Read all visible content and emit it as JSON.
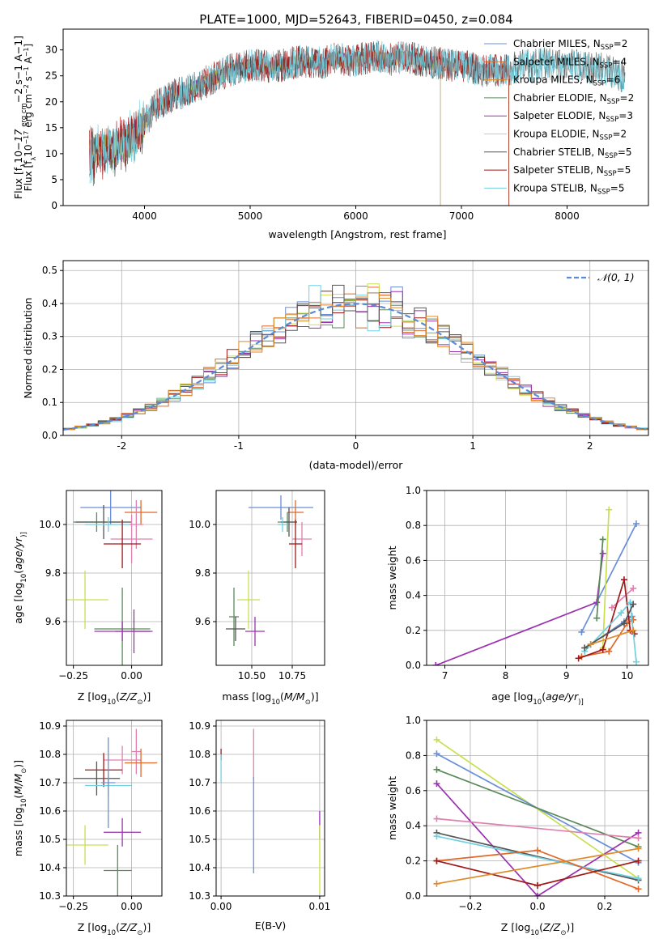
{
  "figure_title": "PLATE=1000, MJD=52643, FIBERID=0450, z=0.084",
  "colors": {
    "Chabrier MILES": "#6a8fd8",
    "Salpeter MILES": "#e0682a",
    "Kroupa MILES": "#e08a2a",
    "Chabrier ELODIE": "#5a8a5a",
    "Salpeter ELODIE": "#9a30b0",
    "Kroupa ELODIE": "#c8e050",
    "Chabrier STELIB": "#555555",
    "Salpeter STELIB": "#a01818",
    "Kroupa STELIB": "#70d0e0",
    "pink": "#e080b0",
    "normal_curve": "#5b8ad6"
  },
  "chart_data": [
    {
      "id": "spectrum",
      "type": "line",
      "title": "PLATE=1000, MJD=52643, FIBERID=0450, z=0.084",
      "xlabel": "wavelength [Angstrom, rest frame]",
      "ylabel": "Flux [f",
      "ylabel_parts": [
        "Flux [f",
        "λ",
        "10",
        "−17",
        " erg cm",
        "−2",
        " s",
        "−1",
        " A",
        "−1",
        "]"
      ],
      "xlim": [
        3230,
        8770
      ],
      "ylim": [
        0,
        34
      ],
      "xticks": [
        4000,
        5000,
        6000,
        7000,
        8000
      ],
      "yticks": [
        0,
        5,
        10,
        15,
        20,
        25,
        30
      ],
      "legend_placement": "right",
      "grid": false,
      "envelope": {
        "x": [
          3480,
          3600,
          3700,
          3800,
          3900,
          4000,
          4100,
          4200,
          4300,
          4400,
          4500,
          4600,
          4700,
          4800,
          4900,
          5000,
          5100,
          5200,
          5300,
          5400,
          5500,
          5600,
          5700,
          5800,
          5900,
          6000,
          6100,
          6200,
          6300,
          6400,
          6500,
          6600,
          6700,
          6800,
          6900,
          7000,
          7100,
          7200,
          7300,
          7400,
          7500,
          7600,
          7700,
          7800,
          7900,
          8000,
          8100,
          8200,
          8300,
          8400,
          8500
        ],
        "y": [
          9.5,
          10.5,
          11,
          12,
          13,
          16,
          19,
          20.5,
          21.5,
          22,
          23,
          24,
          25,
          26,
          26.5,
          27,
          27,
          26.5,
          27,
          27.5,
          28,
          27.5,
          27.5,
          28.5,
          28,
          28,
          28.5,
          29,
          28,
          28.5,
          28.5,
          28,
          27.5,
          27.5,
          27,
          27,
          26.5,
          26,
          26,
          26,
          26.5,
          27,
          27,
          27.5,
          27,
          27,
          27,
          26.5,
          26.5,
          26,
          25
        ]
      },
      "series": [
        {
          "name": "Chabrier MILES, N",
          "sub": "SSP",
          "suffix": "=2",
          "color": "#6a8fd8",
          "x_range": [
            3480,
            7450
          ]
        },
        {
          "name": "Salpeter MILES, N",
          "sub": "SSP",
          "suffix": "=4",
          "color": "#e0682a",
          "x_range": [
            3480,
            7450
          ]
        },
        {
          "name": "Kroupa MILES, N",
          "sub": "SSP",
          "suffix": "=6",
          "color": "#e08a2a",
          "x_range": [
            3480,
            7450
          ]
        },
        {
          "name": "Chabrier ELODIE, N",
          "sub": "SSP",
          "suffix": "=2",
          "color": "#5a8a5a",
          "x_range": [
            3480,
            6800
          ]
        },
        {
          "name": "Salpeter ELODIE, N",
          "sub": "SSP",
          "suffix": "=3",
          "color": "#9a30b0",
          "x_range": [
            3480,
            6800
          ]
        },
        {
          "name": "Kroupa ELODIE, N",
          "sub": "SSP",
          "suffix": "=2",
          "color": "#c8e050",
          "x_range": [
            3480,
            6800
          ]
        },
        {
          "name": "Chabrier STELIB, N",
          "sub": "SSP",
          "suffix": "=5",
          "color": "#555555",
          "x_range": [
            3480,
            8550
          ]
        },
        {
          "name": "Salpeter STELIB, N",
          "sub": "SSP",
          "suffix": "=5",
          "color": "#a01818",
          "x_range": [
            3480,
            7450
          ]
        },
        {
          "name": "Kroupa STELIB, N",
          "sub": "SSP",
          "suffix": "=5",
          "color": "#70d0e0",
          "x_range": [
            3480,
            8550
          ]
        }
      ]
    },
    {
      "id": "residuals",
      "type": "line",
      "xlabel": "(data-model)/error",
      "ylabel": "Normed distribution",
      "xlim": [
        -2.5,
        2.5
      ],
      "ylim": [
        0,
        0.53
      ],
      "xticks": [
        -2,
        -1,
        0,
        1,
        2
      ],
      "ytick_labels": [
        "0.0",
        "0.1",
        "0.2",
        "0.3",
        "0.4",
        "0.5"
      ],
      "grid": true,
      "legend_placement": "top-right",
      "legend_entry": "𝒩(0, 1)",
      "bin_width": 0.1,
      "histogram_colors": [
        "#6a8fd8",
        "#e0682a",
        "#5a8a5a",
        "#9a30b0",
        "#c8e050",
        "#a01818",
        "#70d0e0",
        "#555555",
        "#e08a2a"
      ]
    },
    {
      "id": "age-vs-metallicity",
      "type": "scatter",
      "xlabel": "Z [log",
      "xlabel_parts": [
        "Z [log",
        "10",
        "(",
        "Z/Z",
        "⊙",
        ")]"
      ],
      "ylabel_parts": [
        "age  [log",
        "10",
        "(",
        "age/yr",
        ")]"
      ],
      "xlim": [
        -0.28,
        0.13
      ],
      "ylim": [
        9.42,
        10.14
      ],
      "xticks": [
        -0.25,
        0.0
      ],
      "xtick_labels": [
        "−0.25",
        "0.00"
      ],
      "yticks": [
        9.6,
        9.8,
        10.0
      ],
      "ytick_labels": [
        "9.6",
        "9.8",
        "10.0"
      ],
      "grid": true,
      "points": [
        {
          "x": -0.09,
          "y": 10.07,
          "xerr": 0.13,
          "yerr": 0.07,
          "color": "#6a8fd8"
        },
        {
          "x": 0.04,
          "y": 10.05,
          "xerr": 0.07,
          "yerr": 0.05,
          "color": "#e0682a"
        },
        {
          "x": -0.15,
          "y": 10.01,
          "xerr": 0.1,
          "yerr": 0.04,
          "color": "#5a8a5a"
        },
        {
          "x": -0.12,
          "y": 10.01,
          "xerr": 0.12,
          "yerr": 0.07,
          "color": "#555555"
        },
        {
          "x": -0.1,
          "y": 10.0,
          "xerr": 0.1,
          "yerr": 0.03,
          "color": "#70d0e0"
        },
        {
          "x": 0.02,
          "y": 10.0,
          "xerr": 0.03,
          "yerr": 0.1,
          "color": "#e080b0"
        },
        {
          "x": 0.0,
          "y": 9.94,
          "xerr": 0.09,
          "yerr": 0.1,
          "color": "#e080b0"
        },
        {
          "x": -0.04,
          "y": 9.92,
          "xerr": 0.08,
          "yerr": 0.1,
          "color": "#a01818"
        },
        {
          "x": -0.2,
          "y": 9.69,
          "xerr": 0.1,
          "yerr": 0.12,
          "color": "#c8e050"
        },
        {
          "x": -0.04,
          "y": 9.57,
          "xerr": 0.12,
          "yerr": 0.17,
          "color": "#5a8a5a"
        },
        {
          "x": -0.04,
          "y": 9.56,
          "xerr": 0.12,
          "yerr": 0.04,
          "color": "#9a30b0"
        },
        {
          "x": 0.01,
          "y": 9.56,
          "xerr": 0.08,
          "yerr": 0.09,
          "color": "#9a30b0"
        }
      ]
    },
    {
      "id": "age-vs-mass",
      "type": "scatter",
      "xlabel_parts": [
        "mass [log",
        "10",
        "(",
        "M/M",
        "⊙",
        ")]"
      ],
      "xlim": [
        10.28,
        10.95
      ],
      "ylim": [
        9.42,
        10.14
      ],
      "xticks": [
        10.5,
        10.75
      ],
      "xtick_labels": [
        "10.50",
        "10.75"
      ],
      "yticks": [
        9.6,
        9.8,
        10.0
      ],
      "ytick_labels": [
        "9.6",
        "9.8",
        "10.0"
      ],
      "grid": true,
      "points": [
        {
          "x": 10.68,
          "y": 10.07,
          "xerr": 0.2,
          "yerr": 0.05,
          "color": "#6a8fd8"
        },
        {
          "x": 10.77,
          "y": 10.05,
          "xerr": 0.05,
          "yerr": 0.05,
          "color": "#e0682a"
        },
        {
          "x": 10.72,
          "y": 10.01,
          "xerr": 0.06,
          "yerr": 0.04,
          "color": "#5a8a5a"
        },
        {
          "x": 10.73,
          "y": 10.01,
          "xerr": 0.05,
          "yerr": 0.06,
          "color": "#555555"
        },
        {
          "x": 10.69,
          "y": 10.0,
          "xerr": 0.03,
          "yerr": 0.03,
          "color": "#70d0e0"
        },
        {
          "x": 10.81,
          "y": 9.94,
          "xerr": 0.06,
          "yerr": 0.07,
          "color": "#e080b0"
        },
        {
          "x": 10.77,
          "y": 9.92,
          "xerr": 0.04,
          "yerr": 0.1,
          "color": "#a01818"
        },
        {
          "x": 10.48,
          "y": 9.69,
          "xerr": 0.07,
          "yerr": 0.12,
          "color": "#c8e050"
        },
        {
          "x": 10.39,
          "y": 9.62,
          "xerr": 0.03,
          "yerr": 0.12,
          "color": "#5a8a5a"
        },
        {
          "x": 10.4,
          "y": 9.57,
          "xerr": 0.06,
          "yerr": 0.05,
          "color": "#555555"
        },
        {
          "x": 10.52,
          "y": 9.56,
          "xerr": 0.06,
          "yerr": 0.06,
          "color": "#9a30b0"
        }
      ]
    },
    {
      "id": "massweight-vs-age",
      "type": "line",
      "xlabel_parts": [
        "age  [log",
        "10",
        "(",
        "age/yr",
        ")]"
      ],
      "ylabel": "mass weight",
      "xlim": [
        6.7,
        10.35
      ],
      "ylim": [
        0,
        1
      ],
      "xticks": [
        7,
        8,
        9,
        10
      ],
      "ytick_labels": [
        "0.0",
        "0.2",
        "0.4",
        "0.6",
        "0.8",
        "1.0"
      ],
      "grid": true,
      "series": [
        {
          "color": "#6a8fd8",
          "x": [
            9.25,
            10.15
          ],
          "y": [
            0.19,
            0.81
          ]
        },
        {
          "color": "#6a8fd8",
          "x": [
            9.4,
            9.95,
            10.08
          ],
          "y": [
            0.12,
            0.25,
            0.28
          ]
        },
        {
          "color": "#9a30b0",
          "x": [
            6.85,
            9.5,
            9.6
          ],
          "y": [
            0.0,
            0.36,
            0.64
          ]
        },
        {
          "color": "#5a8a5a",
          "x": [
            9.5,
            9.6
          ],
          "y": [
            0.27,
            0.72
          ]
        },
        {
          "color": "#c8e050",
          "x": [
            9.6,
            9.7
          ],
          "y": [
            0.1,
            0.89
          ]
        },
        {
          "color": "#e080b0",
          "x": [
            9.75,
            10.1
          ],
          "y": [
            0.33,
            0.44
          ]
        },
        {
          "color": "#e0682a",
          "x": [
            9.25,
            9.7,
            10.0,
            10.1
          ],
          "y": [
            0.05,
            0.08,
            0.24,
            0.26
          ]
        },
        {
          "color": "#a01818",
          "x": [
            9.2,
            9.6,
            9.95,
            10.05,
            10.12
          ],
          "y": [
            0.04,
            0.09,
            0.49,
            0.2,
            0.18
          ]
        },
        {
          "color": "#70d0e0",
          "x": [
            9.3,
            9.9,
            10.05,
            10.15
          ],
          "y": [
            0.08,
            0.3,
            0.36,
            0.02
          ]
        },
        {
          "color": "#555555",
          "x": [
            9.3,
            9.95,
            10.1
          ],
          "y": [
            0.1,
            0.24,
            0.35
          ]
        },
        {
          "color": "#e08a2a",
          "x": [
            9.4,
            10.1
          ],
          "y": [
            0.12,
            0.2
          ]
        }
      ]
    },
    {
      "id": "mass-vs-metallicity",
      "type": "scatter",
      "xlabel_parts": [
        "Z [log",
        "10",
        "(",
        "Z/Z",
        "⊙",
        ")]"
      ],
      "ylabel_parts": [
        "mass [log",
        "10",
        "(",
        "M/M",
        "⊙",
        ")]"
      ],
      "xlim": [
        -0.28,
        0.13
      ],
      "ylim": [
        10.3,
        10.92
      ],
      "xticks": [
        -0.25,
        0.0
      ],
      "xtick_labels": [
        "−0.25",
        "0.00"
      ],
      "yticks": [
        10.3,
        10.4,
        10.5,
        10.6,
        10.7,
        10.8,
        10.9
      ],
      "ytick_labels": [
        "10.3",
        "10.4",
        "10.5",
        "10.6",
        "10.7",
        "10.8",
        "10.9"
      ],
      "grid": true,
      "points": [
        {
          "x": 0.02,
          "y": 10.81,
          "xerr": 0.02,
          "yerr": 0.08,
          "color": "#e080b0"
        },
        {
          "x": -0.04,
          "y": 10.78,
          "xerr": 0.08,
          "yerr": 0.05,
          "color": "#e080b0"
        },
        {
          "x": 0.04,
          "y": 10.77,
          "xerr": 0.07,
          "yerr": 0.05,
          "color": "#e0682a"
        },
        {
          "x": -0.12,
          "y": 10.745,
          "xerr": 0.08,
          "yerr": 0.06,
          "color": "#a01818"
        },
        {
          "x": -0.15,
          "y": 10.715,
          "xerr": 0.1,
          "yerr": 0.06,
          "color": "#555555"
        },
        {
          "x": -0.1,
          "y": 10.69,
          "xerr": 0.1,
          "yerr": 0.04,
          "color": "#70d0e0"
        },
        {
          "x": -0.1,
          "y": 10.7,
          "xerr": 0.03,
          "yerr": 0.16,
          "color": "#6a8fd8"
        },
        {
          "x": -0.04,
          "y": 10.525,
          "xerr": 0.08,
          "yerr": 0.05,
          "color": "#9a30b0"
        },
        {
          "x": -0.2,
          "y": 10.48,
          "xerr": 0.1,
          "yerr": 0.07,
          "color": "#c8e050"
        },
        {
          "x": -0.06,
          "y": 10.39,
          "xerr": 0.06,
          "yerr": 0.09,
          "color": "#5a8a5a"
        }
      ]
    },
    {
      "id": "mass-vs-ebv",
      "type": "scatter",
      "xlabel": "E(B-V)",
      "xlim": [
        -0.0005,
        0.0105
      ],
      "ylim": [
        10.3,
        10.92
      ],
      "xticks": [
        0.0,
        0.01
      ],
      "xtick_labels": [
        "0.00",
        "0.01"
      ],
      "yticks": [
        10.3,
        10.4,
        10.5,
        10.6,
        10.7,
        10.8,
        10.9
      ],
      "ytick_labels": [
        "10.3",
        "10.4",
        "10.5",
        "10.6",
        "10.7",
        "10.8",
        "10.9"
      ],
      "grid": true,
      "points": [
        {
          "x": 0.0,
          "y": 10.8,
          "xerr": 0.0,
          "yerr": 0.02,
          "color": "#a01818"
        },
        {
          "x": 0.0,
          "y": 10.75,
          "xerr": 0.0,
          "yerr": 0.05,
          "color": "#70d0e0"
        },
        {
          "x": 0.0033,
          "y": 10.8,
          "xerr": 0.0,
          "yerr": 0.09,
          "color": "#e080b0"
        },
        {
          "x": 0.0033,
          "y": 10.55,
          "xerr": 0.0,
          "yerr": 0.17,
          "color": "#6a8fd8"
        },
        {
          "x": 0.01,
          "y": 10.55,
          "xerr": 0.0,
          "yerr": 0.05,
          "color": "#9a30b0"
        },
        {
          "x": 0.01,
          "y": 10.43,
          "xerr": 0.0,
          "yerr": 0.12,
          "color": "#c8e050"
        }
      ]
    },
    {
      "id": "massweight-vs-metallicity",
      "type": "line",
      "xlabel_parts": [
        "Z [log",
        "10",
        "(",
        "Z/Z",
        "⊙",
        ")]"
      ],
      "ylabel": "mass weight",
      "xlim": [
        -0.33,
        0.33
      ],
      "ylim": [
        0,
        1
      ],
      "xticks": [
        -0.2,
        0.0,
        0.2
      ],
      "xtick_labels": [
        "−0.2",
        "0.0",
        "0.2"
      ],
      "ytick_labels": [
        "0.0",
        "0.2",
        "0.4",
        "0.6",
        "0.8",
        "1.0"
      ],
      "grid": true,
      "series": [
        {
          "color": "#c8e050",
          "x": [
            -0.3,
            0.3
          ],
          "y": [
            0.89,
            0.1
          ]
        },
        {
          "color": "#6a8fd8",
          "x": [
            -0.3,
            0.3
          ],
          "y": [
            0.81,
            0.19
          ]
        },
        {
          "color": "#5a8a5a",
          "x": [
            -0.3,
            0.3
          ],
          "y": [
            0.72,
            0.28
          ]
        },
        {
          "color": "#9a30b0",
          "x": [
            -0.3,
            0.0,
            0.3
          ],
          "y": [
            0.64,
            0.0,
            0.36
          ]
        },
        {
          "color": "#e080b0",
          "x": [
            -0.3,
            0.3
          ],
          "y": [
            0.44,
            0.33
          ]
        },
        {
          "color": "#555555",
          "x": [
            -0.3,
            0.3
          ],
          "y": [
            0.36,
            0.09
          ]
        },
        {
          "color": "#70d0e0",
          "x": [
            -0.3,
            0.3
          ],
          "y": [
            0.34,
            0.1
          ]
        },
        {
          "color": "#e0682a",
          "x": [
            -0.3,
            0.0,
            0.3
          ],
          "y": [
            0.2,
            0.26,
            0.04
          ]
        },
        {
          "color": "#a01818",
          "x": [
            -0.3,
            0.0,
            0.3
          ],
          "y": [
            0.2,
            0.06,
            0.2
          ]
        },
        {
          "color": "#e08a2a",
          "x": [
            -0.3,
            0.3
          ],
          "y": [
            0.07,
            0.27
          ]
        }
      ]
    }
  ]
}
